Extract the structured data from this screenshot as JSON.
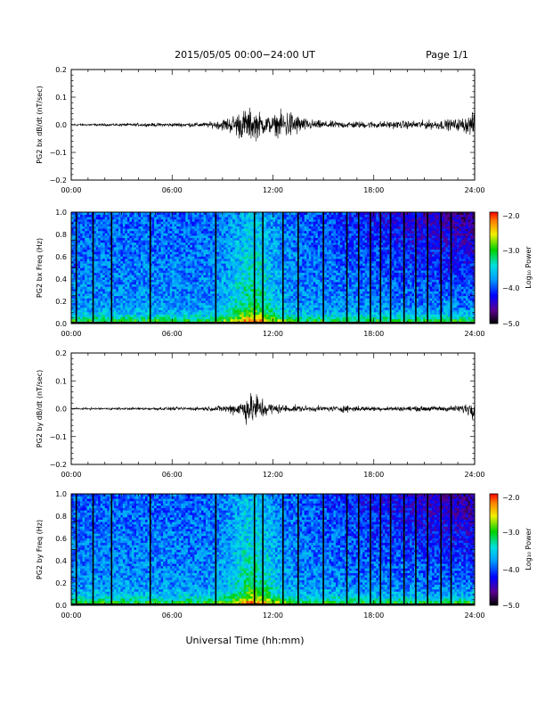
{
  "header": {
    "title": "2015/05/05  00:00−24:00 UT",
    "page": "Page 1/1"
  },
  "colorbar": {
    "label": "Log₁₀ Power",
    "ticks": [
      "−2.0",
      "−3.0",
      "−4.0",
      "−5.0"
    ],
    "range": [
      -5.0,
      -2.0
    ]
  },
  "footer": {
    "xlabel": "Universal Time (hh:mm)"
  },
  "chart_data": [
    {
      "type": "line",
      "ylabel": "PG2 bx dB/dt (nT/sec)",
      "xlim": [
        0,
        24
      ],
      "ylim": [
        -0.2,
        0.2
      ],
      "xticks": [
        "00:00",
        "06:00",
        "12:00",
        "18:00",
        "24:00"
      ],
      "yticks": [
        "0.2",
        "0.1",
        "0.0",
        "−0.1",
        "−0.2"
      ],
      "envelope_x": [
        0,
        2,
        4,
        6,
        8,
        8.5,
        9,
        9.5,
        10,
        10.5,
        11,
        11.5,
        12,
        12.5,
        13,
        13.5,
        14,
        15,
        16,
        18,
        20,
        22,
        23,
        23.5,
        24
      ],
      "envelope_y": [
        0.006,
        0.006,
        0.008,
        0.01,
        0.012,
        0.018,
        0.03,
        0.045,
        0.07,
        0.085,
        0.075,
        0.05,
        0.045,
        0.07,
        0.08,
        0.05,
        0.03,
        0.02,
        0.018,
        0.018,
        0.02,
        0.025,
        0.03,
        0.045,
        0.06
      ]
    },
    {
      "type": "heatmap",
      "ylabel": "PG2 bx Freq (Hz)",
      "xlim": [
        0,
        24
      ],
      "ylim": [
        0.0,
        1.0
      ],
      "xticks": [
        "00:00",
        "06:00",
        "12:00",
        "18:00",
        "24:00"
      ],
      "yticks": [
        "1.0",
        "0.8",
        "0.6",
        "0.4",
        "0.2",
        "0.0"
      ],
      "zrange": [
        -5.0,
        -2.0
      ],
      "gap_hours": [
        0.3,
        1.3,
        2.4,
        4.7,
        8.6,
        10.9,
        11.4,
        12.6,
        13.5,
        15.0,
        16.4,
        17.1,
        17.8,
        18.4,
        19.0,
        19.8,
        20.5,
        21.2,
        22.0,
        22.6
      ]
    },
    {
      "type": "line",
      "ylabel": "PG2 by dB/dt (nT/sec)",
      "xlim": [
        0,
        24
      ],
      "ylim": [
        -0.2,
        0.2
      ],
      "xticks": [
        "00:00",
        "06:00",
        "12:00",
        "18:00",
        "24:00"
      ],
      "yticks": [
        "0.2",
        "0.1",
        "0.0",
        "−0.1",
        "−0.2"
      ],
      "envelope_x": [
        0,
        2,
        4,
        6,
        8,
        8.5,
        9,
        9.5,
        10,
        10.5,
        11,
        11.5,
        12,
        12.5,
        13,
        14,
        15,
        16,
        16.5,
        17,
        18,
        20,
        22,
        23,
        23.5,
        24
      ],
      "envelope_y": [
        0.005,
        0.005,
        0.006,
        0.008,
        0.01,
        0.012,
        0.018,
        0.025,
        0.04,
        0.075,
        0.085,
        0.045,
        0.028,
        0.022,
        0.018,
        0.015,
        0.013,
        0.015,
        0.02,
        0.014,
        0.012,
        0.012,
        0.014,
        0.016,
        0.03,
        0.05
      ]
    },
    {
      "type": "heatmap",
      "ylabel": "PG2 by Freq (Hz)",
      "xlim": [
        0,
        24
      ],
      "ylim": [
        0.0,
        1.0
      ],
      "xticks": [
        "00:00",
        "06:00",
        "12:00",
        "18:00",
        "24:00"
      ],
      "yticks": [
        "1.0",
        "0.8",
        "0.6",
        "0.4",
        "0.2",
        "0.0"
      ],
      "zrange": [
        -5.0,
        -2.0
      ],
      "gap_hours": [
        0.3,
        1.3,
        2.4,
        4.7,
        8.6,
        10.9,
        11.4,
        12.6,
        13.5,
        15.0,
        16.4,
        17.1,
        17.8,
        18.4,
        19.0,
        19.8,
        20.5,
        21.2,
        22.0,
        22.6
      ]
    }
  ]
}
